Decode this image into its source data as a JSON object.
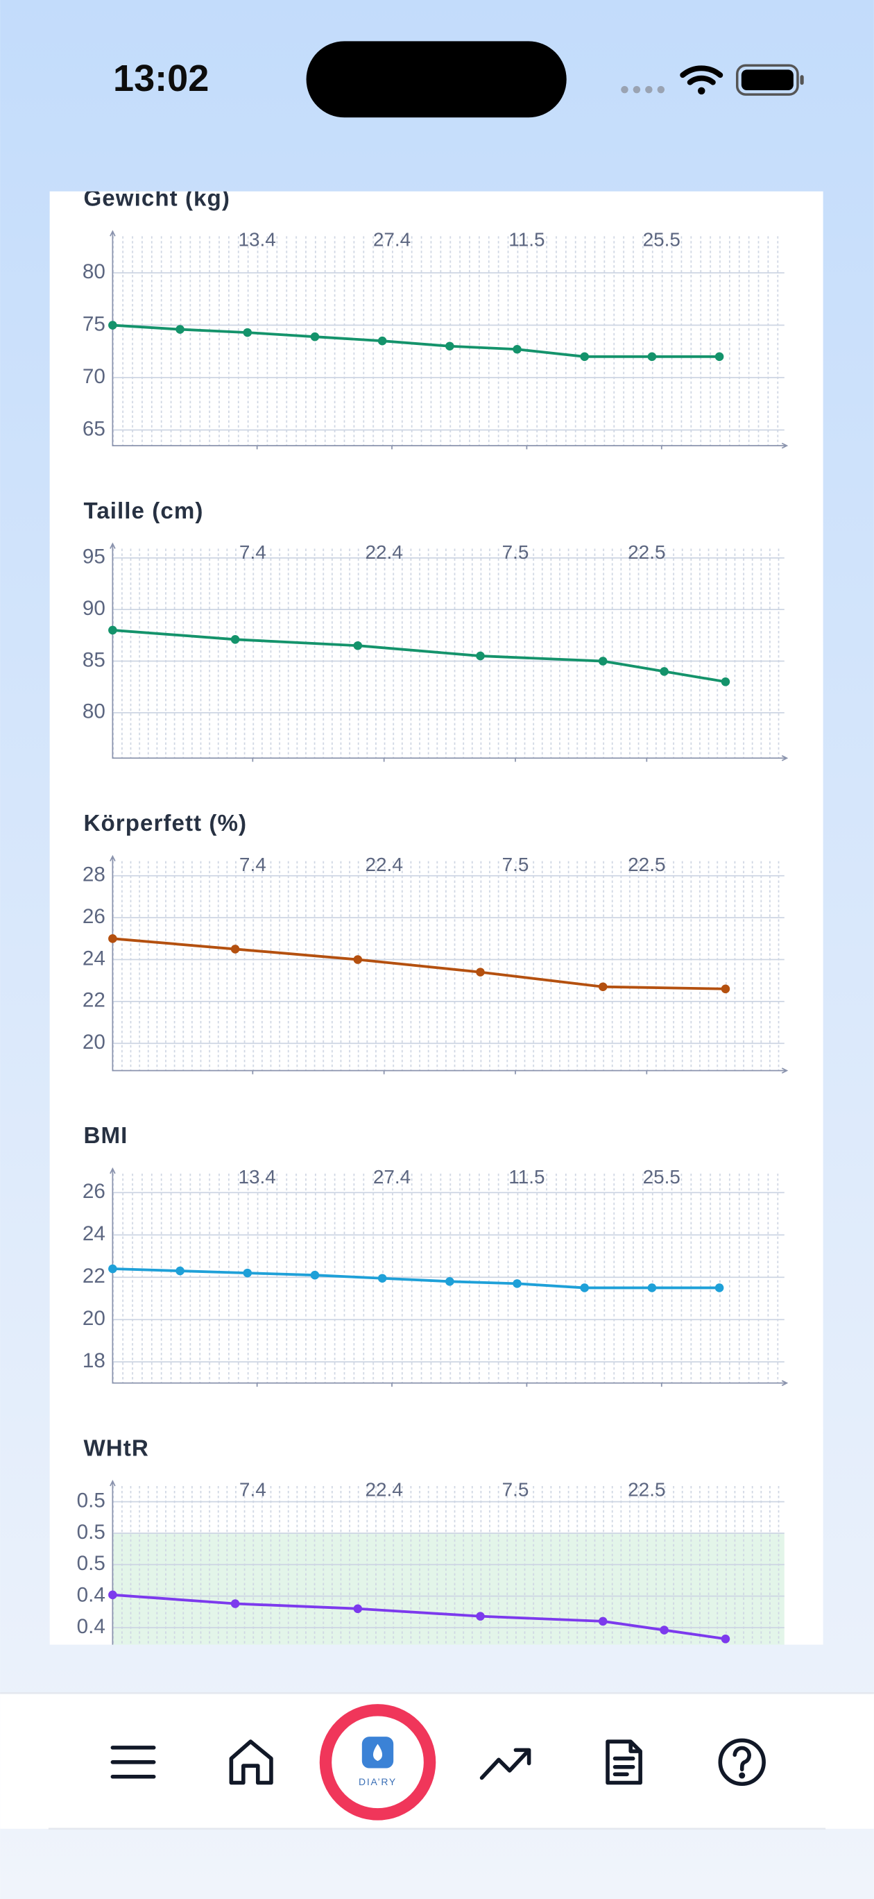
{
  "status_bar": {
    "time": "13:02"
  },
  "nav": {
    "logo": "DIA’RY"
  },
  "chart_data": [
    {
      "type": "line",
      "title": "Gewicht (kg)",
      "x": [
        88,
        95,
        102,
        109,
        116,
        123,
        130,
        137,
        144,
        151
      ],
      "series": [
        {
          "color": "#14936b",
          "values": [
            75,
            74.6,
            74.3,
            73.9,
            73.5,
            73.0,
            72.7,
            72.0,
            72.0,
            72.0
          ]
        }
      ],
      "xlim": [
        88,
        158
      ],
      "xticks": [
        {
          "value": 103,
          "label": "13.4"
        },
        {
          "value": 117,
          "label": "27.4"
        },
        {
          "value": 131,
          "label": "11.5"
        },
        {
          "value": 145,
          "label": "25.5"
        }
      ],
      "ylim": [
        63.5,
        83.5
      ],
      "yticks": [
        65,
        70,
        75,
        80
      ],
      "grid": true
    },
    {
      "type": "line",
      "title": "Taille (cm)",
      "x": [
        81,
        95,
        109,
        123,
        137,
        144,
        151
      ],
      "series": [
        {
          "color": "#14936b",
          "values": [
            88,
            87.1,
            86.5,
            85.5,
            85,
            84,
            83
          ]
        }
      ],
      "xlim": [
        81,
        158
      ],
      "xticks": [
        {
          "value": 97,
          "label": "7.4"
        },
        {
          "value": 112,
          "label": "22.4"
        },
        {
          "value": 127,
          "label": "7.5"
        },
        {
          "value": 142,
          "label": "22.5"
        }
      ],
      "ylim": [
        75.6,
        95.9
      ],
      "yticks": [
        80,
        85,
        90,
        95
      ],
      "grid": true
    },
    {
      "type": "line",
      "title": "Körperfett (%)",
      "x": [
        81,
        95,
        109,
        123,
        137,
        151
      ],
      "series": [
        {
          "color": "#b4500f",
          "values": [
            25,
            24.5,
            24,
            23.4,
            22.7,
            22.6
          ]
        }
      ],
      "xlim": [
        81,
        158
      ],
      "xticks": [
        {
          "value": 97,
          "label": "7.4"
        },
        {
          "value": 112,
          "label": "22.4"
        },
        {
          "value": 127,
          "label": "7.5"
        },
        {
          "value": 142,
          "label": "22.5"
        }
      ],
      "ylim": [
        18.7,
        28.7
      ],
      "yticks": [
        20,
        22,
        24,
        26,
        28
      ],
      "grid": true
    },
    {
      "type": "line",
      "title": "BMI",
      "x": [
        88,
        95,
        102,
        109,
        116,
        123,
        130,
        137,
        144,
        151
      ],
      "series": [
        {
          "color": "#1ea0d8",
          "values": [
            22.4,
            22.3,
            22.2,
            22.1,
            21.95,
            21.8,
            21.7,
            21.5,
            21.5,
            21.5
          ]
        }
      ],
      "xlim": [
        88,
        158
      ],
      "xticks": [
        {
          "value": 103,
          "label": "13.4"
        },
        {
          "value": 117,
          "label": "27.4"
        },
        {
          "value": 131,
          "label": "11.5"
        },
        {
          "value": 145,
          "label": "25.5"
        }
      ],
      "ylim": [
        17,
        26.9
      ],
      "yticks": [
        18,
        20,
        22,
        24,
        26
      ],
      "grid": true
    },
    {
      "type": "line",
      "title": "WHtR",
      "x": [
        81,
        95,
        109,
        123,
        137,
        144,
        151
      ],
      "series": [
        {
          "color": "#7c3aed",
          "values": [
            0.426,
            0.419,
            0.415,
            0.409,
            0.405,
            0.398,
            0.391
          ]
        }
      ],
      "xlim": [
        81,
        158
      ],
      "xticks": [
        {
          "value": 97,
          "label": "7.4"
        },
        {
          "value": 112,
          "label": "22.4"
        },
        {
          "value": 127,
          "label": "7.5"
        },
        {
          "value": 142,
          "label": "22.5"
        }
      ],
      "ylim": [
        0.346,
        0.5125
      ],
      "yticks": [
        0.4,
        {
          "value": 0.425,
          "label": "0.4"
        },
        {
          "value": 0.45,
          "label": "0.5"
        },
        {
          "value": 0.475,
          "label": "0.5"
        },
        0.5
      ],
      "band": [
        0.346,
        0.475
      ],
      "band_color": "#e3f5e9",
      "grid": true
    }
  ]
}
